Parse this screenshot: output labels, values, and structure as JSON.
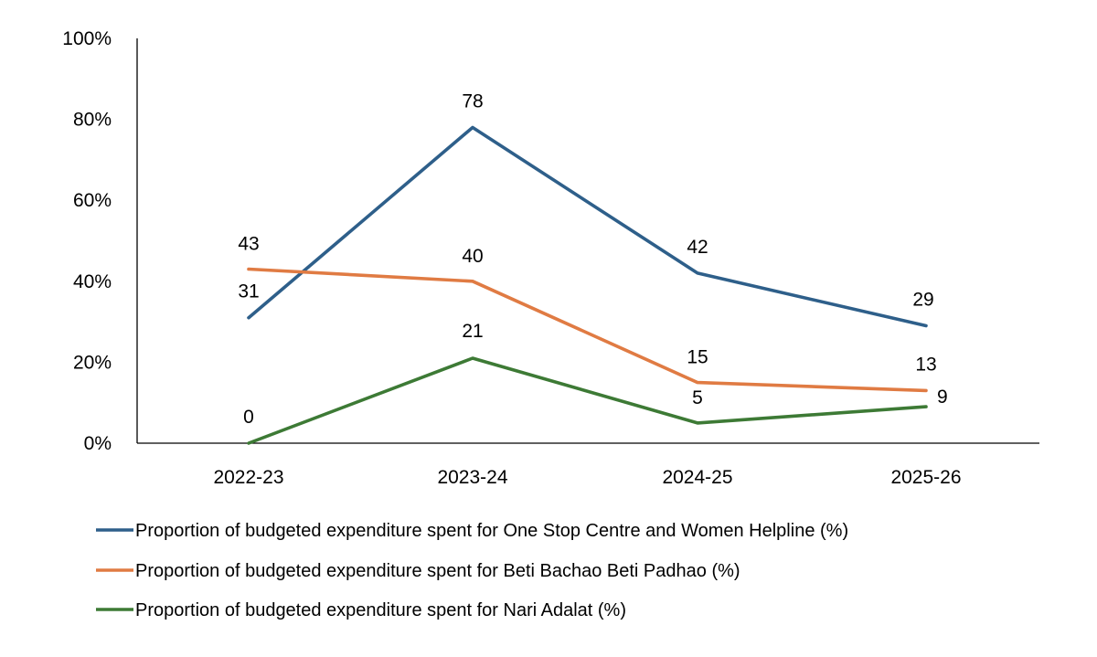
{
  "chart_data": {
    "type": "line",
    "title": "",
    "xlabel": "",
    "ylabel": "",
    "categories": [
      "2022-23",
      "2023-24",
      "2024-25",
      "2025-26"
    ],
    "ylim": [
      0,
      100
    ],
    "yticks": [
      "0%",
      "20%",
      "40%",
      "60%",
      "80%",
      "100%"
    ],
    "ytick_values": [
      0,
      20,
      40,
      60,
      80,
      100
    ],
    "grid": false,
    "legend_position": "bottom",
    "series": [
      {
        "name": "Proportion of budgeted expenditure spent for One Stop Centre and Women Helpline (%)",
        "values": [
          31,
          78,
          42,
          29
        ],
        "labels": [
          "31",
          "78",
          "42",
          "29"
        ],
        "color": "#2E5F8A"
      },
      {
        "name": "Proportion of budgeted expenditure spent for Beti Bachao Beti Padhao (%)",
        "values": [
          43,
          40,
          15,
          13
        ],
        "labels": [
          "43",
          "40",
          "15",
          "13"
        ],
        "color": "#E07B43"
      },
      {
        "name": "Proportion of budgeted expenditure spent for Nari Adalat (%)",
        "values": [
          0,
          21,
          5,
          9
        ],
        "labels": [
          "0",
          "21",
          "5",
          "9"
        ],
        "color": "#3D7A35"
      }
    ]
  }
}
